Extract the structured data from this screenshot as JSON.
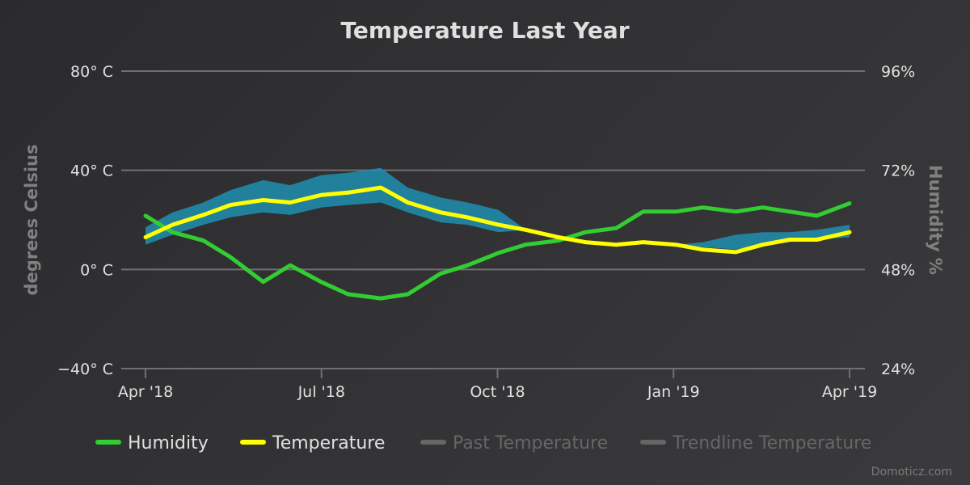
{
  "chart_data": {
    "type": "line",
    "title": "Temperature Last Year",
    "xlabel": "",
    "ylabel": "degrees Celsius",
    "y2label": "Humidity %",
    "x_ticks": [
      "Apr '18",
      "Jul '18",
      "Oct '18",
      "Jan '19",
      "Apr '19"
    ],
    "y_ticks": [
      "80° C",
      "40° C",
      "0° C",
      "−40° C"
    ],
    "y2_ticks": [
      "96%",
      "72%",
      "48%",
      "24%"
    ],
    "xlim": [
      "2018-04-01",
      "2019-04-01"
    ],
    "ylim": [
      -40,
      80
    ],
    "y2lim": [
      24,
      96
    ],
    "grid": true,
    "legend_position": "bottom",
    "credit": "Domoticz.com",
    "x_dates": [
      "2018-04-01",
      "2018-04-15",
      "2018-05-01",
      "2018-05-15",
      "2018-06-01",
      "2018-06-15",
      "2018-07-01",
      "2018-07-15",
      "2018-08-01",
      "2018-08-15",
      "2018-09-01",
      "2018-09-15",
      "2018-10-01",
      "2018-10-15",
      "2018-11-01",
      "2018-11-15",
      "2018-12-01",
      "2018-12-15",
      "2019-01-01",
      "2019-01-15",
      "2019-02-01",
      "2019-02-15",
      "2019-03-01",
      "2019-03-15",
      "2019-04-01"
    ],
    "series": [
      {
        "name": "Humidity",
        "color": "#32cd32",
        "axis": "right",
        "values": [
          61,
          57,
          55,
          51,
          45,
          49,
          45,
          42,
          41,
          42,
          47,
          49,
          52,
          54,
          55,
          57,
          58,
          62,
          62,
          63,
          62,
          63,
          62,
          61,
          64
        ]
      },
      {
        "name": "Temperature",
        "color": "#ffff00",
        "axis": "left",
        "values": [
          13,
          18,
          22,
          26,
          28,
          27,
          30,
          31,
          33,
          27,
          23,
          21,
          18,
          16,
          13,
          11,
          10,
          11,
          10,
          8,
          7,
          10,
          12,
          12,
          15
        ]
      },
      {
        "name": "Past Temperature",
        "color": "#666666",
        "hidden": true,
        "values": []
      },
      {
        "name": "Trendline Temperature",
        "color": "#666666",
        "hidden": true,
        "values": []
      }
    ],
    "temperature_band": {
      "color": "#1f8fb0",
      "min": [
        10,
        14,
        18,
        21,
        23,
        22,
        25,
        26,
        27,
        23,
        19,
        18,
        15,
        16,
        13,
        11,
        10,
        11,
        10,
        9,
        8,
        10,
        11,
        12,
        13
      ],
      "max": [
        17,
        23,
        27,
        32,
        36,
        34,
        38,
        39,
        41,
        33,
        29,
        27,
        24,
        16,
        13,
        11,
        10,
        11,
        10,
        11,
        14,
        15,
        15,
        16,
        18
      ]
    }
  }
}
